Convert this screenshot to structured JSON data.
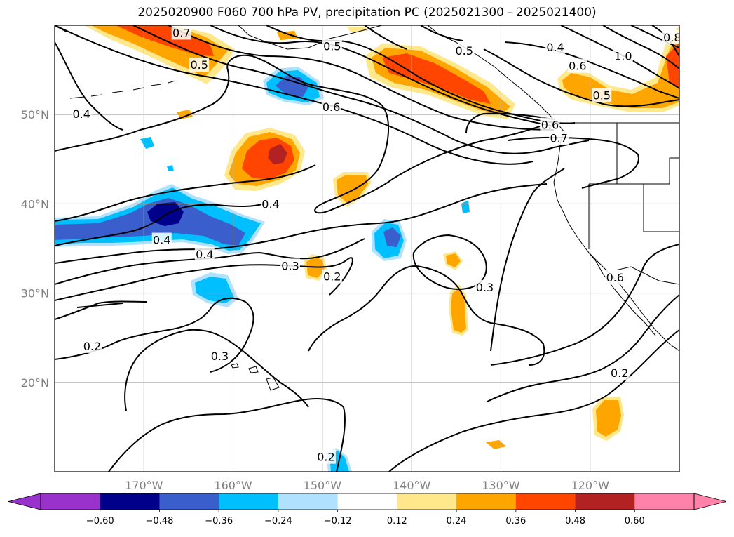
{
  "title": "2025020900 F060 700 hPa PV, precipitation PC (2025021300 - 2025021400)",
  "chart_data": {
    "type": "map",
    "lon_range": [
      -180,
      -110
    ],
    "lat_range": [
      10,
      60
    ],
    "lat_ticks": [
      {
        "lat": 50,
        "label": "50°N"
      },
      {
        "lat": 40,
        "label": "40°N"
      },
      {
        "lat": 30,
        "label": "30°N"
      },
      {
        "lat": 20,
        "label": "20°N"
      }
    ],
    "lon_ticks": [
      {
        "lon": -170,
        "label": "170°W"
      },
      {
        "lon": -160,
        "label": "160°W"
      },
      {
        "lon": -150,
        "label": "150°W"
      },
      {
        "lon": -140,
        "label": "140°W"
      },
      {
        "lon": -130,
        "label": "130°W"
      },
      {
        "lon": -120,
        "label": "120°W"
      }
    ],
    "grid": true,
    "colorbar": {
      "orientation": "horizontal",
      "extend": "both",
      "bounds": [
        -0.72,
        -0.6,
        -0.48,
        -0.36,
        -0.24,
        -0.12,
        0.12,
        0.24,
        0.36,
        0.48,
        0.6,
        0.72
      ],
      "colors": [
        "#9932cc",
        "#9932cc",
        "#00008b",
        "#3a5fcd",
        "#00bfff",
        "#b0e2ff",
        "#ffffff",
        "#ffe88c",
        "#ffa500",
        "#ff4500",
        "#b22222",
        "#ff82ab",
        "#ff82ab"
      ],
      "tick_labels": [
        "−0.60",
        "−0.48",
        "−0.36",
        "−0.24",
        "−0.12",
        "0.12",
        "0.24",
        "0.36",
        "0.48",
        "0.60"
      ]
    },
    "contour_labels": [
      {
        "text": "0.7",
        "lon": -165.8,
        "lat": 59.1
      },
      {
        "text": "0.5",
        "lon": -163.8,
        "lat": 55.5
      },
      {
        "text": "0.5",
        "lon": -148.9,
        "lat": 57.6
      },
      {
        "text": "0.5",
        "lon": -134.1,
        "lat": 57.1
      },
      {
        "text": "0.4",
        "lon": -123.9,
        "lat": 57.5
      },
      {
        "text": "0.6",
        "lon": -121.4,
        "lat": 55.4
      },
      {
        "text": "1.0",
        "lon": -116.3,
        "lat": 56.5
      },
      {
        "text": "0.8",
        "lon": -110.8,
        "lat": 58.6
      },
      {
        "text": "0.4",
        "lon": -177.0,
        "lat": 50.0
      },
      {
        "text": "0.6",
        "lon": -149.0,
        "lat": 50.8
      },
      {
        "text": "0.5",
        "lon": -118.7,
        "lat": 52.1
      },
      {
        "text": "0.6",
        "lon": -124.5,
        "lat": 48.8
      },
      {
        "text": "0.7",
        "lon": -123.5,
        "lat": 47.3
      },
      {
        "text": "0.4",
        "lon": -155.8,
        "lat": 39.9
      },
      {
        "text": "0.4",
        "lon": -168.0,
        "lat": 35.9
      },
      {
        "text": "0.4",
        "lon": -163.2,
        "lat": 34.3
      },
      {
        "text": "0.3",
        "lon": -153.6,
        "lat": 33.0
      },
      {
        "text": "0.2",
        "lon": -148.9,
        "lat": 31.8
      },
      {
        "text": "0.3",
        "lon": -131.8,
        "lat": 30.6
      },
      {
        "text": "0.6",
        "lon": -117.2,
        "lat": 31.7
      },
      {
        "text": "0.2",
        "lon": -175.8,
        "lat": 24.0
      },
      {
        "text": "0.3",
        "lon": -161.5,
        "lat": 22.9
      },
      {
        "text": "0.2",
        "lon": -116.7,
        "lat": 21.0
      },
      {
        "text": "0.2",
        "lon": -149.6,
        "lat": 11.6
      }
    ]
  }
}
